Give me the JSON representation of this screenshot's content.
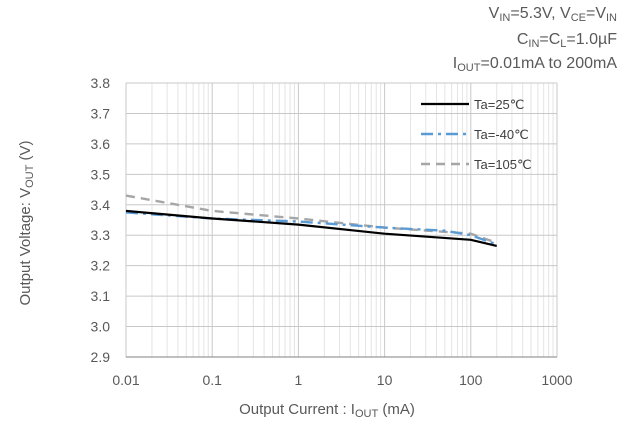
{
  "conditions": {
    "line1": {
      "a": "V",
      "a_sub": "IN",
      "b": "=5.3V, V",
      "b_sub": "CE",
      "c": "=V",
      "c_sub": "IN"
    },
    "line2": {
      "a": "C",
      "a_sub": "IN",
      "b": "=C",
      "b_sub": "L",
      "c": "=1.0µF"
    },
    "line3": {
      "a": "I",
      "a_sub": "OUT",
      "b": "=0.01mA to 200mA"
    }
  },
  "chart_data": {
    "type": "line",
    "x_scale": "log",
    "xlim": [
      0.01,
      1000
    ],
    "ylim": [
      2.9,
      3.8
    ],
    "x_ticks": [
      "0.01",
      "0.1",
      "1",
      "10",
      "100",
      "1000"
    ],
    "y_ticks": [
      "2.9",
      "3.0",
      "3.1",
      "3.2",
      "3.3",
      "3.4",
      "3.5",
      "3.6",
      "3.7",
      "3.8"
    ],
    "xlabel": {
      "prefix": "Output Current : I",
      "sub": "OUT",
      "suffix": " (mA)"
    },
    "ylabel": {
      "prefix": "Output Voltage: V",
      "sub": "OUT",
      "suffix": " (V)"
    },
    "grid": true,
    "legend_position": "top-right",
    "series": [
      {
        "name": "Ta=25℃",
        "color": "#000000",
        "dash": "solid",
        "x": [
          0.01,
          0.1,
          1,
          10,
          100,
          200
        ],
        "y": [
          3.38,
          3.355,
          3.335,
          3.305,
          3.285,
          3.265
        ]
      },
      {
        "name": "Ta=-40℃",
        "color": "#5b9bd5",
        "dash": "dashdot",
        "x": [
          0.01,
          0.1,
          1,
          10,
          50,
          100,
          200
        ],
        "y": [
          3.375,
          3.355,
          3.345,
          3.325,
          3.315,
          3.3,
          3.27
        ]
      },
      {
        "name": "Ta=105℃",
        "color": "#a6a6a6",
        "dash": "dash",
        "x": [
          0.01,
          0.1,
          1,
          10,
          100,
          200
        ],
        "y": [
          3.43,
          3.38,
          3.355,
          3.325,
          3.305,
          3.275
        ]
      }
    ]
  }
}
